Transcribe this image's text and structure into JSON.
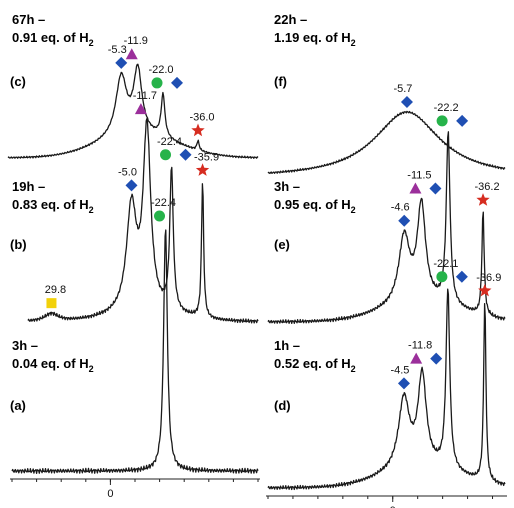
{
  "colors": {
    "diamond": "#1f4fb3",
    "triangle": "#9b2f9b",
    "circle": "#26b34a",
    "star": "#d62c20",
    "square": "#f2d10a",
    "trace": "#1a1a1a"
  },
  "chart_data": [
    {
      "type": "line",
      "id": "c",
      "panel_label": "(c)",
      "time": "67h –",
      "h2_prefix": "0.91 eq. of H",
      "h2_sub": "2",
      "xlim": [
        -60,
        40
      ],
      "x_reversed": true,
      "peaks": [
        {
          "x": -5.3,
          "label": "-5.3",
          "marker": "diamond",
          "height": 0.62
        },
        {
          "x": -11.9,
          "label": "-11.9",
          "marker": "triangle",
          "height": 0.66
        },
        {
          "x": -22.0,
          "label": "-22.0",
          "marker": "circle",
          "height": 0.45
        },
        {
          "x": -22.0,
          "label": "",
          "marker": "diamond",
          "height": 0.45
        },
        {
          "x": -36.0,
          "label": "-36.0",
          "marker": "star",
          "height": 0.1
        }
      ]
    },
    {
      "type": "line",
      "id": "b",
      "panel_label": "(b)",
      "time": "19h –",
      "h2_prefix": "0.83 eq. of H",
      "h2_sub": "2",
      "xlim": [
        -60,
        40
      ],
      "x_reversed": true,
      "peaks": [
        {
          "x": -5.0,
          "label": "-5.0",
          "marker": "diamond",
          "height": 0.55
        },
        {
          "x": -11.7,
          "label": "-11.7",
          "marker": "triangle",
          "height": 0.95
        },
        {
          "x": -22.4,
          "label": "-22.4",
          "marker": "circle",
          "height": 0.75
        },
        {
          "x": -22.4,
          "label": "",
          "marker": "diamond",
          "height": 0.75
        },
        {
          "x": -35.9,
          "label": "-35.9",
          "marker": "star",
          "height": 0.72
        },
        {
          "x": 29.8,
          "label": "29.8",
          "marker": "square",
          "height": 0.04
        }
      ]
    },
    {
      "type": "line",
      "id": "a",
      "panel_label": "(a)",
      "time": "3h –",
      "h2_prefix": "0.04 eq. of H",
      "h2_sub": "2",
      "xlim": [
        -60,
        40
      ],
      "x_reversed": true,
      "x_ticks": [
        {
          "x": 0,
          "label": "0"
        }
      ],
      "peaks": [
        {
          "x": -22.4,
          "label": "-22.4",
          "marker": "circle",
          "height": 1.0
        }
      ]
    },
    {
      "type": "line",
      "id": "f",
      "panel_label": "(f)",
      "time": "22h –",
      "h2_prefix": "1.19 eq. of H",
      "h2_sub": "2",
      "xlim": [
        -45,
        50
      ],
      "x_reversed": true,
      "peaks": [
        {
          "x": -5.7,
          "label": "-5.7",
          "marker": "diamond",
          "height": 0.6
        }
      ]
    },
    {
      "type": "line",
      "id": "e",
      "panel_label": "(e)",
      "time": "3h –",
      "h2_prefix": "0.95 eq. of H",
      "h2_sub": "2",
      "xlim": [
        -45,
        50
      ],
      "x_reversed": true,
      "peaks": [
        {
          "x": -4.6,
          "label": "-4.6",
          "marker": "diamond",
          "height": 0.35
        },
        {
          "x": -11.5,
          "label": "-11.5",
          "marker": "triangle",
          "height": 0.5
        },
        {
          "x": -11.5,
          "label": "",
          "marker": "diamond",
          "height": 0.5
        },
        {
          "x": -22.2,
          "label": "-22.2",
          "marker": "circle",
          "height": 0.9
        },
        {
          "x": -22.2,
          "label": "",
          "marker": "diamond",
          "height": 0.9
        },
        {
          "x": -36.2,
          "label": "-36.2",
          "marker": "star",
          "height": 0.55
        }
      ]
    },
    {
      "type": "line",
      "id": "d",
      "panel_label": "(d)",
      "time": "1h –",
      "h2_prefix": "0.52 eq. of H",
      "h2_sub": "2",
      "xlim": [
        -45,
        50
      ],
      "x_reversed": true,
      "x_ticks": [
        {
          "x": 0,
          "label": "0"
        }
      ],
      "peaks": [
        {
          "x": -4.5,
          "label": "-4.5",
          "marker": "diamond",
          "height": 0.35
        },
        {
          "x": -11.8,
          "label": "-11.8",
          "marker": "triangle",
          "height": 0.45
        },
        {
          "x": -11.8,
          "label": "",
          "marker": "diamond",
          "height": 0.45
        },
        {
          "x": -22.1,
          "label": "-22.1",
          "marker": "circle",
          "height": 0.9
        },
        {
          "x": -22.1,
          "label": "",
          "marker": "diamond",
          "height": 0.9
        },
        {
          "x": -36.9,
          "label": "-36.9",
          "marker": "star",
          "height": 0.9
        }
      ]
    }
  ]
}
